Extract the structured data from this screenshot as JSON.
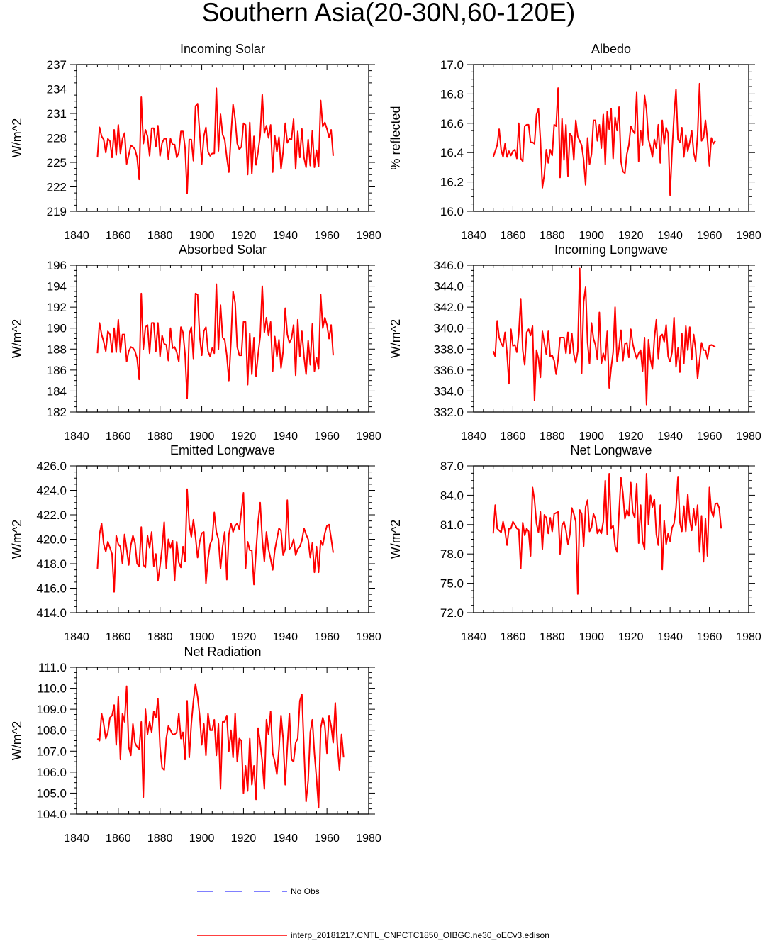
{
  "page_title": "Southern Asia(20-30N,60-120E)",
  "legend": [
    {
      "label": "No Obs",
      "color": "#0000ff",
      "style": "dashed"
    },
    {
      "label": "interp_20181217.CNTL_CNPCTC1850_OIBGC.ne30_oECv3.edison",
      "color": "#ff0000",
      "style": "solid"
    }
  ],
  "series_color": "#ff0000",
  "chart_data": [
    {
      "type": "line",
      "title": "Incoming Solar",
      "ylabel": "W/m^2",
      "xlim": [
        1840,
        1980
      ],
      "ylim": [
        219,
        237
      ],
      "xticks": [
        "1840",
        "1860",
        "1880",
        "1900",
        "1920",
        "1940",
        "1960",
        "1980"
      ],
      "yticks": [
        "219",
        "222",
        "225",
        "228",
        "231",
        "234",
        "237"
      ],
      "x_start": 1850,
      "values": [
        225.6,
        229.3,
        228.2,
        227.8,
        226.2,
        227.9,
        227.6,
        225.6,
        229.0,
        225.9,
        229.6,
        226.1,
        227.9,
        228.6,
        224.8,
        225.9,
        227.1,
        226.9,
        226.6,
        225.6,
        222.9,
        233.0,
        227.3,
        229.0,
        228.2,
        225.8,
        229.2,
        229.2,
        226.9,
        229.5,
        225.8,
        227.4,
        227.9,
        227.9,
        225.4,
        227.9,
        227.2,
        227.2,
        225.6,
        226.2,
        228.8,
        228.8,
        226.8,
        221.2,
        227.8,
        227.8,
        225.2,
        231.9,
        232.2,
        228.6,
        224.8,
        228.2,
        229.3,
        226.3,
        225.8,
        226.1,
        226.1,
        234.1,
        226.4,
        230.9,
        228.4,
        227.8,
        225.6,
        223.8,
        228.3,
        232.1,
        230.3,
        227.3,
        226.6,
        226.9,
        229.8,
        229.6,
        223.5,
        229.9,
        223.6,
        228.2,
        224.7,
        226.3,
        228.3,
        233.3,
        228.6,
        229.5,
        228.0,
        229.6,
        223.8,
        228.3,
        226.3,
        228.1,
        224.2,
        226.3,
        229.8,
        227.4,
        227.9,
        227.8,
        230.3,
        224.2,
        228.8,
        225.6,
        229.1,
        225.6,
        224.4,
        227.8,
        224.6,
        228.9,
        224.4,
        226.5,
        224.5,
        232.6,
        229.4,
        229.9,
        229.1,
        228.1,
        229.0,
        225.8
      ],
      "series_name": "interp_20181217.CNTL_CNPCTC1850_OIBGC.ne30_oECv3.edison"
    },
    {
      "type": "line",
      "title": "Albedo",
      "ylabel": "% reflected",
      "xlim": [
        1840,
        1980
      ],
      "ylim": [
        16.0,
        17.0
      ],
      "xticks": [
        "1840",
        "1860",
        "1880",
        "1900",
        "1920",
        "1940",
        "1960",
        "1980"
      ],
      "yticks": [
        "16.0",
        "16.2",
        "16.4",
        "16.6",
        "16.8",
        "17.0"
      ],
      "x_start": 1850,
      "values": [
        16.37,
        16.41,
        16.45,
        16.56,
        16.42,
        16.37,
        16.46,
        16.37,
        16.41,
        16.38,
        16.41,
        16.42,
        16.36,
        16.6,
        16.36,
        16.34,
        16.58,
        16.59,
        16.59,
        16.47,
        16.47,
        16.46,
        16.66,
        16.7,
        16.49,
        16.16,
        16.25,
        16.42,
        16.33,
        16.42,
        16.38,
        16.59,
        16.58,
        16.84,
        16.23,
        16.63,
        16.35,
        16.59,
        16.24,
        16.53,
        16.51,
        16.35,
        16.62,
        16.51,
        16.48,
        16.45,
        16.35,
        16.18,
        16.5,
        16.32,
        16.39,
        16.62,
        16.62,
        16.48,
        16.59,
        16.43,
        16.66,
        16.32,
        16.68,
        16.56,
        16.7,
        16.36,
        16.64,
        16.55,
        16.71,
        16.34,
        16.27,
        16.26,
        16.39,
        16.45,
        16.58,
        16.55,
        16.53,
        16.81,
        16.34,
        16.55,
        16.45,
        16.79,
        16.69,
        16.49,
        16.44,
        16.37,
        16.49,
        16.43,
        16.59,
        16.33,
        16.62,
        16.46,
        16.57,
        16.53,
        16.11,
        16.41,
        16.65,
        16.83,
        16.49,
        16.47,
        16.57,
        16.37,
        16.52,
        16.41,
        16.47,
        16.55,
        16.4,
        16.34,
        16.52,
        16.87,
        16.48,
        16.5,
        16.62,
        16.49,
        16.31,
        16.5,
        16.46,
        16.48
      ],
      "series_name": "interp_20181217.CNTL_CNPCTC1850_OIBGC.ne30_oECv3.edison"
    },
    {
      "type": "line",
      "title": "Absorbed Solar",
      "ylabel": "W/m^2",
      "xlim": [
        1840,
        1980
      ],
      "ylim": [
        182,
        196
      ],
      "xticks": [
        "1840",
        "1860",
        "1880",
        "1900",
        "1920",
        "1940",
        "1960",
        "1980"
      ],
      "yticks": [
        "182",
        "184",
        "186",
        "188",
        "190",
        "192",
        "194",
        "196"
      ],
      "x_start": 1850,
      "values": [
        187.6,
        190.5,
        189.4,
        188.7,
        187.8,
        189.7,
        189.4,
        187.7,
        190.0,
        187.7,
        190.8,
        187.7,
        189.4,
        189.4,
        186.8,
        187.8,
        188.2,
        188.1,
        187.8,
        187.1,
        185.1,
        193.3,
        188.0,
        190.1,
        190.3,
        187.6,
        190.5,
        190.5,
        187.8,
        190.5,
        187.3,
        189.3,
        188.5,
        188.4,
        186.9,
        190.0,
        188.1,
        188.2,
        187.7,
        186.8,
        190.1,
        189.6,
        187.5,
        183.3,
        189.4,
        190.1,
        187.1,
        193.3,
        193.2,
        189.2,
        187.4,
        189.7,
        190.1,
        187.8,
        187.3,
        188.1,
        187.6,
        194.2,
        188.0,
        192.2,
        189.1,
        188.9,
        187.4,
        185.0,
        188.7,
        193.5,
        192.4,
        188.2,
        187.4,
        187.4,
        190.6,
        190.6,
        184.6,
        189.5,
        185.6,
        189.1,
        185.4,
        187.5,
        189.2,
        194.0,
        189.6,
        191.0,
        189.3,
        190.6,
        185.9,
        189.2,
        187.3,
        188.9,
        186.2,
        187.8,
        191.9,
        189.4,
        188.6,
        189.0,
        190.3,
        185.5,
        190.8,
        187.3,
        189.7,
        187.3,
        185.6,
        188.8,
        186.5,
        190.4,
        185.9,
        187.2,
        186.1,
        193.2,
        190.0,
        191.0,
        190.3,
        189.0,
        190.3,
        187.4
      ],
      "series_name": "interp_20181217.CNTL_CNPCTC1850_OIBGC.ne30_oECv3.edison"
    },
    {
      "type": "line",
      "title": "Incoming Longwave",
      "ylabel": "W/m^2",
      "xlim": [
        1840,
        1980
      ],
      "ylim": [
        332.0,
        346.0
      ],
      "xticks": [
        "1840",
        "1860",
        "1880",
        "1900",
        "1920",
        "1940",
        "1960",
        "1980"
      ],
      "yticks": [
        "332.0",
        "334.0",
        "336.0",
        "338.0",
        "340.0",
        "342.0",
        "344.0",
        "346.0"
      ],
      "x_start": 1850,
      "values": [
        337.8,
        337.3,
        340.7,
        339.1,
        338.6,
        338.2,
        339.6,
        337.6,
        334.7,
        339.9,
        338.3,
        338.4,
        337.7,
        339.5,
        342.8,
        337.9,
        336.5,
        339.6,
        339.9,
        339.3,
        340.2,
        333.1,
        337.9,
        337.1,
        335.3,
        339.7,
        338.6,
        337.5,
        339.7,
        337.3,
        337.4,
        336.9,
        335.6,
        337.0,
        339.1,
        339.1,
        339.1,
        337.6,
        339.6,
        337.6,
        339.5,
        337.5,
        336.7,
        337.8,
        345.7,
        335.7,
        342.5,
        343.9,
        338.6,
        336.6,
        340.5,
        339.0,
        338.4,
        337.0,
        341.5,
        336.6,
        337.6,
        336.9,
        339.7,
        334.3,
        336.2,
        337.7,
        342.0,
        336.8,
        338.1,
        339.8,
        336.9,
        338.5,
        338.6,
        337.2,
        339.9,
        338.5,
        337.7,
        337.1,
        337.6,
        337.9,
        335.9,
        339.1,
        332.7,
        338.9,
        337.0,
        336.1,
        339.0,
        340.8,
        337.1,
        339.2,
        339.4,
        338.7,
        340.3,
        337.3,
        336.8,
        337.7,
        341.0,
        336.3,
        338.1,
        335.8,
        339.5,
        336.6,
        340.2,
        337.9,
        340.1,
        337.0,
        339.4,
        338.0,
        335.2,
        336.9,
        338.6,
        337.9,
        337.9,
        337.1,
        338.3,
        338.4,
        338.3,
        338.2
      ],
      "series_name": "interp_20181217.CNTL_CNPCTC1850_OIBGC.ne30_oECv3.edison"
    },
    {
      "type": "line",
      "title": "Emitted Longwave",
      "ylabel": "W/m^2",
      "xlim": [
        1840,
        1980
      ],
      "ylim": [
        414.0,
        426.0
      ],
      "xticks": [
        "1840",
        "1860",
        "1880",
        "1900",
        "1920",
        "1940",
        "1960",
        "1980"
      ],
      "yticks": [
        "414.0",
        "416.0",
        "418.0",
        "420.0",
        "422.0",
        "424.0",
        "426.0"
      ],
      "x_start": 1850,
      "values": [
        417.6,
        420.4,
        421.3,
        419.6,
        419.0,
        419.8,
        419.3,
        418.8,
        415.7,
        420.3,
        419.6,
        419.4,
        418.0,
        420.4,
        419.2,
        417.9,
        419.5,
        420.3,
        419.7,
        418.0,
        417.8,
        421.0,
        417.9,
        417.7,
        420.3,
        419.3,
        420.6,
        417.8,
        418.8,
        416.6,
        417.8,
        419.3,
        421.4,
        417.6,
        420.0,
        419.3,
        419.9,
        416.6,
        419.8,
        418.1,
        417.7,
        419.4,
        418.2,
        424.1,
        421.2,
        420.2,
        421.6,
        420.2,
        418.5,
        419.8,
        420.5,
        420.6,
        416.4,
        418.4,
        419.6,
        420.0,
        422.2,
        420.6,
        420.0,
        417.6,
        419.4,
        420.6,
        416.7,
        420.4,
        421.3,
        420.6,
        421.1,
        421.3,
        420.8,
        422.3,
        423.8,
        417.6,
        419.8,
        419.1,
        419.1,
        416.3,
        419.0,
        421.4,
        423.0,
        420.0,
        418.2,
        420.6,
        419.2,
        418.4,
        417.5,
        419.1,
        420.0,
        420.9,
        420.7,
        418.7,
        419.2,
        423.2,
        419.2,
        419.4,
        420.0,
        418.7,
        419.2,
        419.4,
        419.9,
        420.9,
        420.4,
        420.0,
        418.5,
        419.7,
        417.3,
        419.4,
        417.3,
        419.9,
        419.5,
        420.5,
        421.1,
        421.2,
        420.1,
        418.9
      ],
      "series_name": "interp_20181217.CNTL_CNPCTC1850_OIBGC.ne30_oECv3.edison"
    },
    {
      "type": "line",
      "title": "Net Longwave",
      "ylabel": "W/m^2",
      "xlim": [
        1840,
        1980
      ],
      "ylim": [
        72.0,
        87.0
      ],
      "xticks": [
        "1840",
        "1860",
        "1880",
        "1900",
        "1920",
        "1940",
        "1960",
        "1980"
      ],
      "yticks": [
        "72.0",
        "75.0",
        "78.0",
        "81.0",
        "84.0",
        "87.0"
      ],
      "x_start": 1850,
      "values": [
        80.1,
        83.0,
        80.6,
        80.4,
        80.2,
        81.3,
        80.3,
        78.9,
        80.6,
        80.6,
        81.3,
        81.0,
        80.6,
        80.5,
        76.5,
        81.2,
        79.9,
        80.6,
        80.3,
        77.8,
        84.8,
        83.5,
        81.1,
        80.2,
        82.3,
        78.5,
        82.0,
        81.7,
        80.1,
        81.7,
        80.3,
        82.1,
        82.2,
        82.3,
        78.0,
        80.9,
        81.3,
        80.4,
        79.0,
        80.0,
        82.7,
        82.1,
        81.3,
        73.9,
        82.5,
        82.1,
        78.8,
        82.8,
        83.5,
        80.3,
        80.7,
        82.1,
        81.6,
        80.1,
        80.5,
        80.1,
        81.3,
        85.5,
        80.0,
        86.2,
        80.6,
        80.9,
        78.8,
        78.2,
        82.2,
        85.8,
        84.2,
        81.6,
        82.5,
        81.9,
        85.3,
        82.3,
        81.7,
        85.2,
        79.1,
        83.0,
        79.3,
        78.5,
        86.2,
        81.0,
        84.0,
        82.8,
        83.6,
        80.0,
        78.9,
        83.0,
        76.4,
        81.4,
        79.0,
        80.1,
        79.3,
        80.7,
        81.1,
        82.7,
        85.9,
        81.2,
        80.3,
        82.9,
        80.3,
        84.1,
        81.5,
        80.4,
        82.6,
        80.9,
        83.0,
        78.2,
        81.9,
        77.2,
        81.6,
        77.8,
        84.8,
        82.4,
        81.8,
        83.1,
        83.2,
        82.7,
        80.6
      ],
      "series_name": "interp_20181217.CNTL_CNPCTC1850_OIBGC.ne30_oECv3.edison"
    },
    {
      "type": "line",
      "title": "Net Radiation",
      "ylabel": "W/m^2",
      "xlim": [
        1840,
        1980
      ],
      "ylim": [
        104.0,
        111.0
      ],
      "xticks": [
        "1840",
        "1860",
        "1880",
        "1900",
        "1920",
        "1940",
        "1960",
        "1980"
      ],
      "yticks": [
        "104.0",
        "105.0",
        "106.0",
        "107.0",
        "108.0",
        "109.0",
        "110.0",
        "111.0"
      ],
      "x_start": 1850,
      "values": [
        107.6,
        107.5,
        108.8,
        108.3,
        107.6,
        107.9,
        108.6,
        108.7,
        109.2,
        107.3,
        109.6,
        106.6,
        108.8,
        108.4,
        110.1,
        107.2,
        106.8,
        108.3,
        107.4,
        107.2,
        107.1,
        108.4,
        104.8,
        109.0,
        107.8,
        108.4,
        107.9,
        108.9,
        108.6,
        109.5,
        107.2,
        106.2,
        106.1,
        107.6,
        108.2,
        108.0,
        107.8,
        107.8,
        107.9,
        108.8,
        107.6,
        107.9,
        106.6,
        109.4,
        106.7,
        108.3,
        109.4,
        110.2,
        109.6,
        108.7,
        107.3,
        108.3,
        106.8,
        108.8,
        108.0,
        108.0,
        108.5,
        106.8,
        108.3,
        105.2,
        108.4,
        108.4,
        108.7,
        107.0,
        108.0,
        106.7,
        108.8,
        106.5,
        107.6,
        107.5,
        105.0,
        106.3,
        105.1,
        107.6,
        105.4,
        106.3,
        104.7,
        108.1,
        107.4,
        106.5,
        105.2,
        108.5,
        107.8,
        108.9,
        106.9,
        106.5,
        105.9,
        107.1,
        108.7,
        107.6,
        105.4,
        107.2,
        108.8,
        106.6,
        106.5,
        107.4,
        107.6,
        109.4,
        109.7,
        107.1,
        104.6,
        105.6,
        107.9,
        108.5,
        106.9,
        105.7,
        104.3,
        108.1,
        108.6,
        108.2,
        106.9,
        108.7,
        108.2,
        107.4,
        109.3,
        107.3,
        106.1,
        107.8,
        106.7
      ],
      "series_name": "interp_20181217.CNTL_CNPCTC1850_OIBGC.ne30_oECv3.edison"
    }
  ]
}
